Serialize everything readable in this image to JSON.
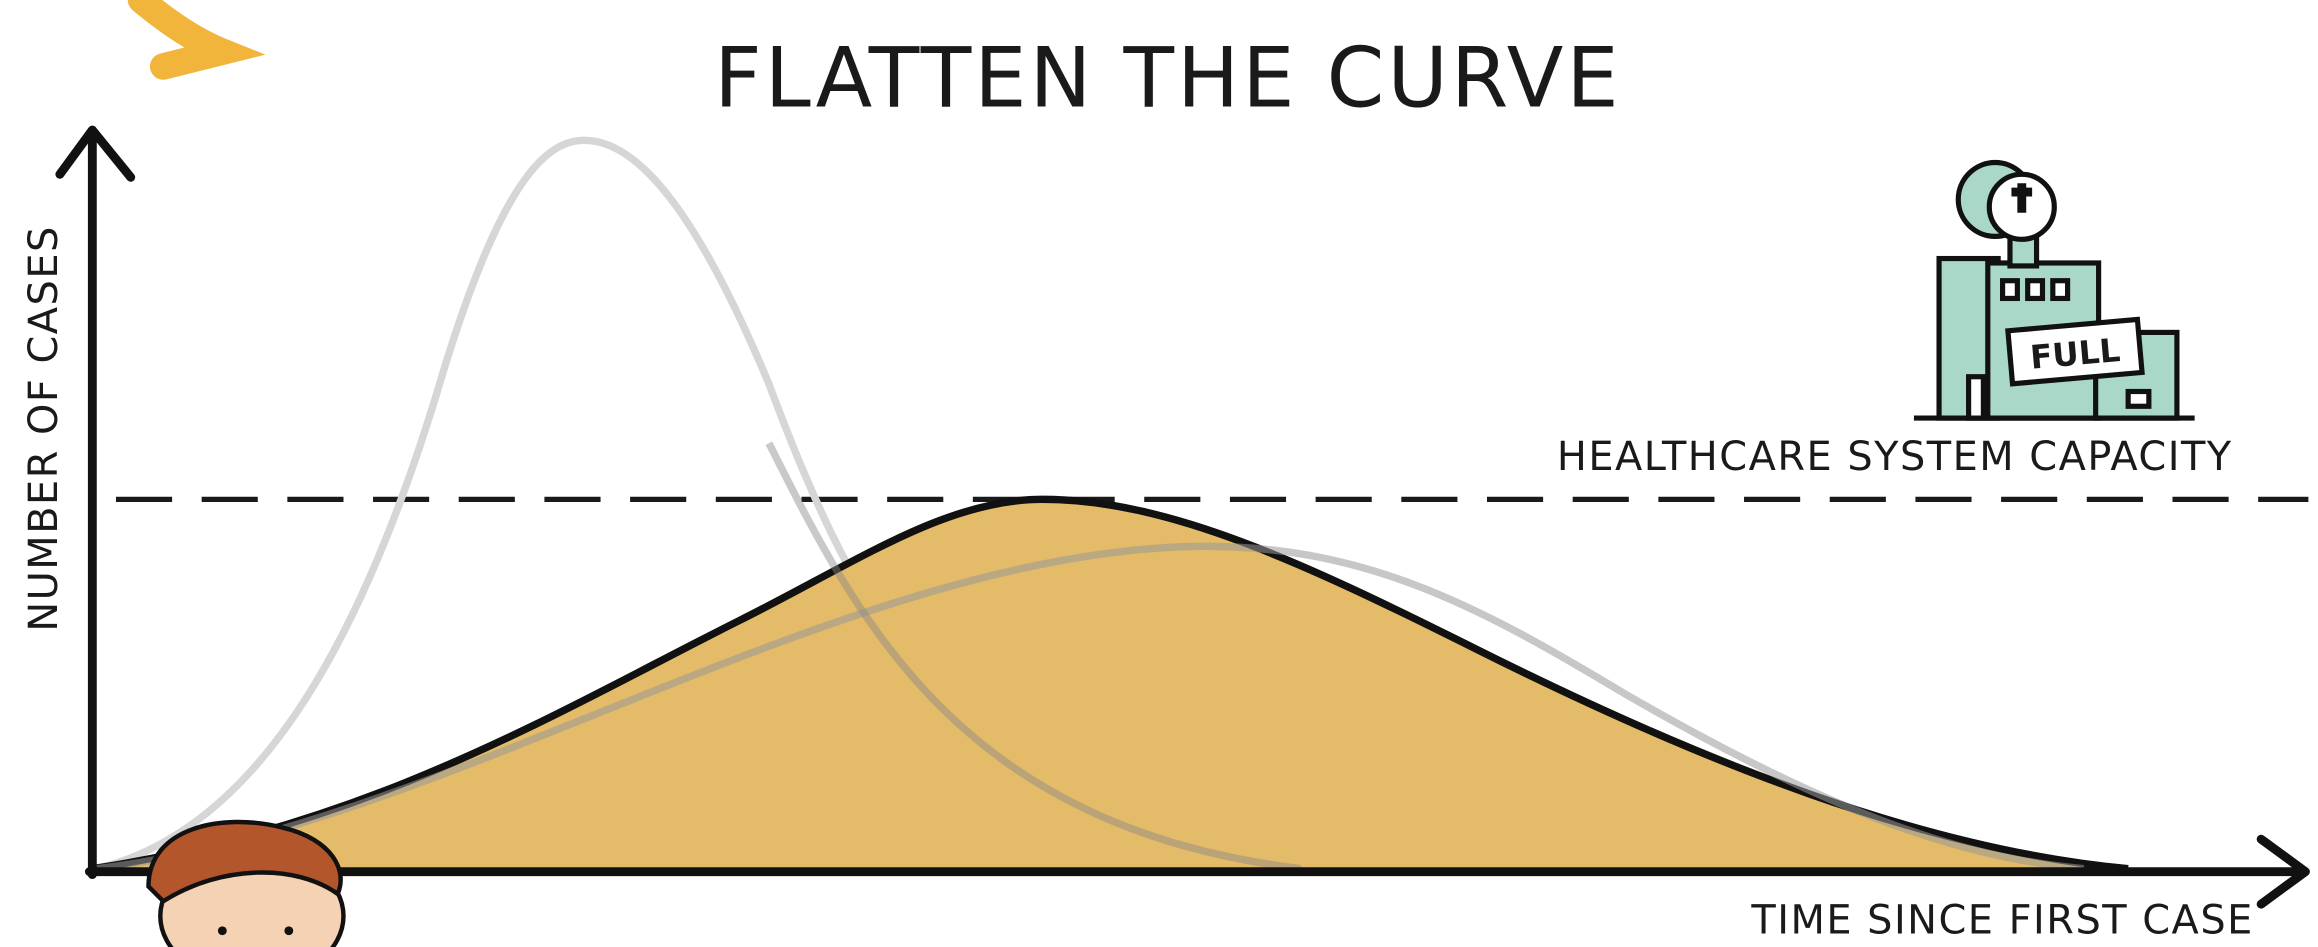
{
  "header": {
    "title": "FLATTEN THE CURVE"
  },
  "axes": {
    "y_label": "NUMBER OF CASES",
    "x_label": "TIME SINCE FIRST CASE"
  },
  "annotations": {
    "capacity": "HEALTHCARE SYSTEM CAPACITY",
    "hospital_sign": "FULL"
  }
}
